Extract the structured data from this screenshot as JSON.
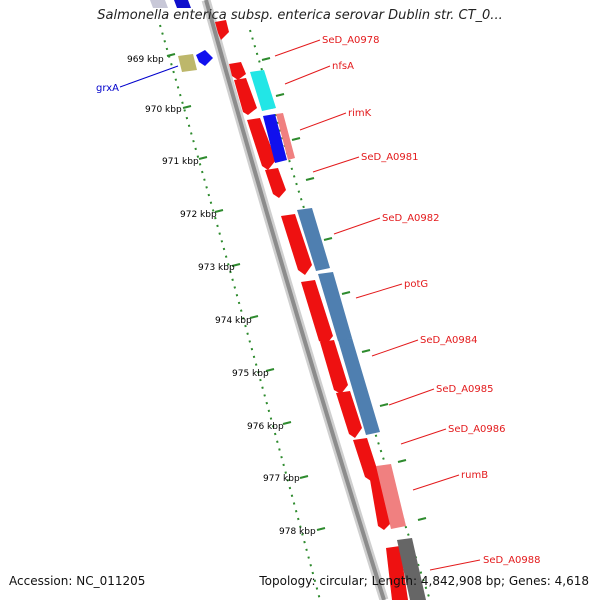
{
  "title": "Salmonella enterica subsp. enterica serovar Dublin str. CT_0...",
  "footer": {
    "accession": "Accession: NC_011205",
    "summary": "Topology: circular; Length: 4,842,908 bp; Genes: 4,618"
  },
  "colors": {
    "backbone": "#8c8c8c",
    "tick": "#2e8b2e",
    "label_red": "#e31a1c",
    "label_blue": "#0000cc"
  },
  "kbp_ticks": [
    "969 kbp",
    "970 kbp",
    "971 kbp",
    "972 kbp",
    "973 kbp",
    "974 kbp",
    "975 kbp",
    "976 kbp",
    "977 kbp",
    "978 kbp"
  ],
  "genes": [
    {
      "name": "SeD_A0978",
      "color": "red"
    },
    {
      "name": "nfsA",
      "color": "red"
    },
    {
      "name": "rimK",
      "color": "red"
    },
    {
      "name": "SeD_A0981",
      "color": "red"
    },
    {
      "name": "SeD_A0982",
      "color": "red"
    },
    {
      "name": "potG",
      "color": "red"
    },
    {
      "name": "SeD_A0984",
      "color": "red"
    },
    {
      "name": "SeD_A0985",
      "color": "red"
    },
    {
      "name": "SeD_A0986",
      "color": "red"
    },
    {
      "name": "rumB",
      "color": "red"
    },
    {
      "name": "SeD_A0988",
      "color": "red"
    },
    {
      "name": "grxA",
      "color": "blue"
    }
  ]
}
